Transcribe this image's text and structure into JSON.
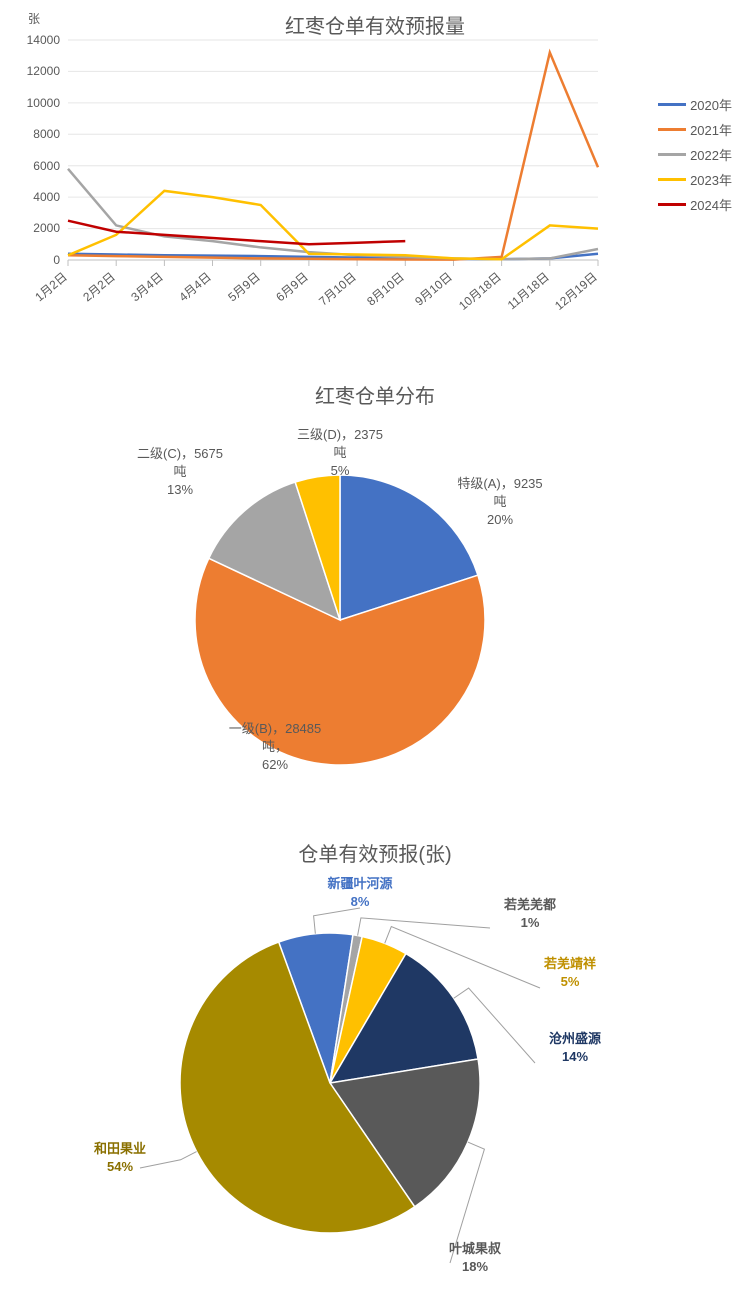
{
  "line_chart": {
    "type": "line",
    "title": "红枣仓单有效预报量",
    "y_unit": "张",
    "ylim": [
      0,
      14000
    ],
    "ytick_step": 2000,
    "yticks": [
      0,
      2000,
      4000,
      6000,
      8000,
      10000,
      12000,
      14000
    ],
    "x_labels": [
      "1月2日",
      "2月2日",
      "3月4日",
      "4月4日",
      "5月9日",
      "6月9日",
      "7月10日",
      "8月10日",
      "9月10日",
      "10月18日",
      "11月18日",
      "12月19日"
    ],
    "grid_color": "#d9d9d9",
    "axis_color": "#bfbfbf",
    "background_color": "#ffffff",
    "line_width": 2.5,
    "series": [
      {
        "name": "2020年",
        "color": "#4472c4",
        "values": [
          400,
          350,
          300,
          280,
          250,
          200,
          150,
          100,
          80,
          50,
          100,
          400
        ]
      },
      {
        "name": "2021年",
        "color": "#ed7d31",
        "values": [
          300,
          250,
          200,
          150,
          100,
          80,
          50,
          30,
          20,
          200,
          13200,
          5900
        ]
      },
      {
        "name": "2022年",
        "color": "#a5a5a5",
        "values": [
          5800,
          2200,
          1500,
          1200,
          800,
          500,
          300,
          200,
          100,
          50,
          100,
          700
        ]
      },
      {
        "name": "2023年",
        "color": "#ffc000",
        "values": [
          300,
          1600,
          4400,
          4000,
          3500,
          400,
          350,
          300,
          100,
          50,
          2200,
          2000
        ]
      },
      {
        "name": "2024年",
        "color": "#c00000",
        "values": [
          2500,
          1800,
          1600,
          1400,
          1200,
          1000,
          1100,
          1200,
          null,
          null,
          null,
          null
        ]
      }
    ],
    "title_fontsize": 20,
    "label_fontsize": 12
  },
  "pie1": {
    "type": "pie",
    "title": "红枣仓单分布",
    "title_fontsize": 20,
    "label_fontsize": 13,
    "background_color": "#ffffff",
    "slices": [
      {
        "name": "特级(A)",
        "value": 9235,
        "unit": "吨",
        "percent": "20%",
        "color": "#4472c4"
      },
      {
        "name": "一级(B)",
        "value": 28485,
        "unit": "吨，",
        "percent": "62%",
        "color": "#ed7d31"
      },
      {
        "name": "二级(C)",
        "value": 5675,
        "unit": "吨",
        "percent": "13%",
        "color": "#a5a5a5"
      },
      {
        "name": "三级(D)",
        "value": 2375,
        "unit": "吨",
        "percent": "5%",
        "color": "#ffc000"
      }
    ]
  },
  "pie2": {
    "type": "pie",
    "title": "仓单有效预报(张)",
    "title_fontsize": 20,
    "label_fontsize": 13,
    "background_color": "#ffffff",
    "slices": [
      {
        "name": "新疆叶河源",
        "percent": "8%",
        "color": "#4472c4",
        "label_color": "#4472c4"
      },
      {
        "name": "若羌羌都",
        "percent": "1%",
        "color": "#a5a5a5",
        "label_color": "#595959"
      },
      {
        "name": "若羌靖祥",
        "percent": "5%",
        "color": "#ffc000",
        "label_color": "#bf9000"
      },
      {
        "name": "沧州盛源",
        "percent": "14%",
        "color": "#1f3864",
        "label_color": "#1f3864"
      },
      {
        "name": "叶城果叔",
        "percent": "18%",
        "color": "#595959",
        "label_color": "#595959"
      },
      {
        "name": "和田果业",
        "percent": "54%",
        "color": "#a68a00",
        "label_color": "#8a7000"
      }
    ]
  }
}
